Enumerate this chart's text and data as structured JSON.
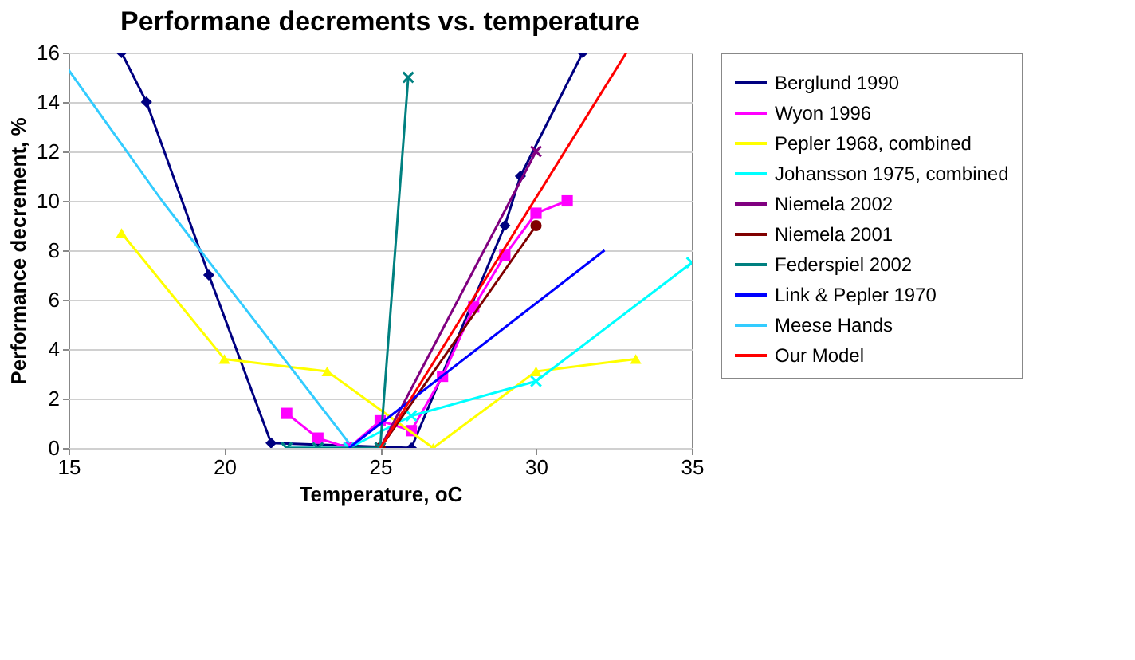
{
  "chart_data": {
    "type": "line",
    "title": "Performane decrements vs. temperature",
    "xlabel": "Temperature, oC",
    "ylabel": "Performance decrement, %",
    "xlim": [
      15,
      35
    ],
    "xticks": [
      15,
      20,
      25,
      30,
      35
    ],
    "ylim": [
      0,
      16
    ],
    "yticks": [
      0,
      2,
      4,
      6,
      8,
      10,
      12,
      14,
      16
    ],
    "grid": "y",
    "legend": "right",
    "series": [
      {
        "name": "Berglund 1990",
        "color": "#000080",
        "marker": "diamond",
        "x": [
          16.7,
          17.5,
          19.5,
          21.5,
          26,
          29,
          29.5,
          31.5
        ],
        "values": [
          16,
          14,
          7,
          0.2,
          0,
          9,
          11,
          16
        ]
      },
      {
        "name": "Wyon 1996",
        "color": "#ff00ff",
        "marker": "square",
        "x": [
          22,
          23,
          24,
          25,
          26,
          27,
          28,
          29,
          30,
          31
        ],
        "values": [
          1.4,
          0.4,
          0,
          1.1,
          0.7,
          2.9,
          5.7,
          7.8,
          9.5,
          10
        ]
      },
      {
        "name": "Pepler 1968, combined",
        "color": "#ffff00",
        "marker": "triangle",
        "x": [
          16.7,
          20,
          23.3,
          26.7,
          30,
          33.2
        ],
        "values": [
          8.7,
          3.6,
          3.1,
          0,
          3.1,
          3.6
        ]
      },
      {
        "name": "Johansson 1975, combined",
        "color": "#00ffff",
        "marker": "cross",
        "x": [
          22,
          23,
          24,
          26,
          30,
          35
        ],
        "values": [
          0,
          0,
          0,
          1.3,
          2.7,
          7.5
        ]
      },
      {
        "name": "Niemela 2002",
        "color": "#800080",
        "marker": "cross",
        "x": [
          25,
          30
        ],
        "values": [
          0,
          12
        ]
      },
      {
        "name": "Niemela 2001",
        "color": "#800000",
        "marker": "circle",
        "x": [
          25,
          30
        ],
        "values": [
          0,
          9
        ]
      },
      {
        "name": "Federspiel 2002",
        "color": "#008080",
        "marker": "cross",
        "x": [
          22,
          23,
          25,
          25.9
        ],
        "values": [
          0,
          0,
          0,
          15
        ]
      },
      {
        "name": "Link & Pepler 1970",
        "color": "#0000ff",
        "marker": "none",
        "x": [
          24,
          32.2
        ],
        "values": [
          0,
          8
        ]
      },
      {
        "name": "Meese Hands",
        "color": "#33ccff",
        "marker": "none",
        "x": [
          15,
          18,
          24
        ],
        "values": [
          15.3,
          10,
          0.2
        ]
      },
      {
        "name": "Our Model",
        "color": "#ff0000",
        "marker": "none",
        "x": [
          25,
          32.9
        ],
        "values": [
          0,
          16
        ]
      }
    ]
  }
}
